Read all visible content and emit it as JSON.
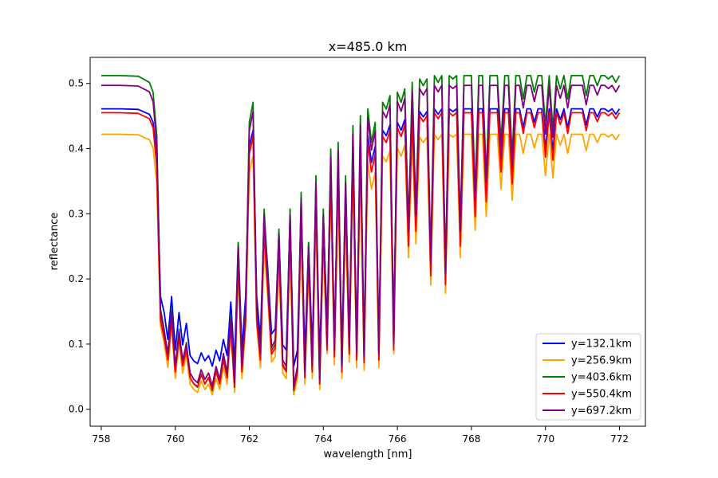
{
  "chart_data": {
    "type": "line",
    "title": "x=485.0 km",
    "xlabel": "wavelength [nm]",
    "ylabel": "reflectance",
    "xlim": [
      757.7,
      772.7
    ],
    "ylim": [
      -0.026,
      0.54
    ],
    "xticks": [
      758,
      760,
      762,
      764,
      766,
      768,
      770,
      772
    ],
    "yticks": [
      0.0,
      0.1,
      0.2,
      0.3,
      0.4,
      0.5
    ],
    "xtick_labels": [
      "758",
      "760",
      "762",
      "764",
      "766",
      "768",
      "770",
      "772"
    ],
    "ytick_labels": [
      "0.0",
      "0.1",
      "0.2",
      "0.3",
      "0.4",
      "0.5"
    ],
    "grid": false,
    "legend_position": "lower-right",
    "series": [
      {
        "name": "y=132.1km",
        "color": "#0000ff",
        "continuum": 0.461
      },
      {
        "name": "y=256.9km",
        "color": "#ffa500",
        "continuum": 0.422
      },
      {
        "name": "y=403.6km",
        "color": "#008000",
        "continuum": 0.512
      },
      {
        "name": "y=550.4km",
        "color": "#ff0000",
        "continuum": 0.455
      },
      {
        "name": "y=697.2km",
        "color": "#800080",
        "continuum": 0.497
      }
    ],
    "x": [
      758.0,
      758.5,
      759.0,
      759.3,
      759.4,
      759.5,
      759.6,
      759.7,
      759.8,
      759.9,
      760.0,
      760.1,
      760.2,
      760.3,
      760.4,
      760.5,
      760.6,
      760.7,
      760.8,
      760.9,
      761.0,
      761.1,
      761.2,
      761.3,
      761.4,
      761.5,
      761.6,
      761.7,
      761.8,
      761.9,
      762.0,
      762.1,
      762.2,
      762.3,
      762.4,
      762.5,
      762.6,
      762.7,
      762.8,
      762.9,
      763.0,
      763.1,
      763.2,
      763.3,
      763.4,
      763.5,
      763.6,
      763.7,
      763.8,
      763.9,
      764.0,
      764.1,
      764.2,
      764.3,
      764.4,
      764.5,
      764.6,
      764.7,
      764.8,
      764.9,
      765.0,
      765.1,
      765.2,
      765.3,
      765.4,
      765.5,
      765.6,
      765.7,
      765.8,
      765.9,
      766.0,
      766.1,
      766.2,
      766.3,
      766.4,
      766.5,
      766.6,
      766.7,
      766.8,
      766.9,
      767.0,
      767.1,
      767.2,
      767.3,
      767.4,
      767.5,
      767.6,
      767.7,
      767.8,
      767.9,
      768.0,
      768.1,
      768.2,
      768.3,
      768.4,
      768.5,
      768.6,
      768.7,
      768.8,
      768.9,
      769.0,
      769.1,
      769.2,
      769.3,
      769.4,
      769.5,
      769.6,
      769.7,
      769.8,
      769.9,
      770.0,
      770.1,
      770.2,
      770.3,
      770.4,
      770.5,
      770.6,
      770.7,
      770.8,
      770.9,
      771.0,
      771.1,
      771.2,
      771.3,
      771.4,
      771.5,
      771.6,
      771.7,
      771.8,
      771.9,
      772.0
    ],
    "ratio": [
      1.0,
      1.0,
      0.998,
      0.98,
      0.95,
      0.82,
      0.3,
      0.24,
      0.14,
      0.3,
      0.1,
      0.24,
      0.12,
      0.2,
      0.08,
      0.06,
      0.05,
      0.09,
      0.06,
      0.08,
      0.04,
      0.1,
      0.06,
      0.14,
      0.08,
      0.28,
      0.05,
      0.5,
      0.1,
      0.3,
      0.86,
      0.92,
      0.3,
      0.14,
      0.6,
      0.4,
      0.16,
      0.18,
      0.54,
      0.12,
      0.1,
      0.6,
      0.04,
      0.1,
      0.65,
      0.08,
      0.5,
      0.1,
      0.7,
      0.06,
      0.6,
      0.2,
      0.78,
      0.15,
      0.8,
      0.1,
      0.7,
      0.16,
      0.85,
      0.14,
      0.88,
      0.13,
      0.9,
      0.8,
      0.86,
      0.14,
      0.92,
      0.9,
      0.94,
      0.2,
      0.95,
      0.92,
      0.96,
      0.55,
      0.98,
      0.6,
      0.99,
      0.97,
      0.99,
      0.45,
      1.0,
      0.98,
      1.0,
      0.42,
      1.0,
      0.99,
      1.0,
      0.55,
      1.0,
      1.0,
      1.0,
      0.65,
      1.0,
      1.0,
      0.7,
      1.0,
      1.0,
      1.0,
      0.8,
      1.0,
      1.0,
      0.76,
      1.0,
      1.0,
      0.93,
      1.0,
      1.0,
      0.95,
      1.0,
      1.0,
      0.85,
      1.0,
      0.84,
      1.0,
      0.96,
      1.0,
      0.93,
      1.0,
      1.0,
      1.0,
      1.0,
      0.94,
      1.0,
      1.0,
      0.97,
      1.0,
      1.0,
      0.99,
      1.0,
      0.98,
      1.0
    ]
  }
}
